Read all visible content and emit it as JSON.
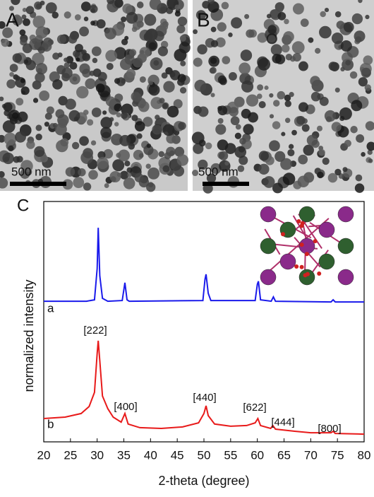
{
  "panels": {
    "A": {
      "label": "A",
      "scale_bar": "500 nm"
    },
    "B": {
      "label": "B",
      "scale_bar": "500 nm"
    }
  },
  "chart_data": {
    "type": "line",
    "panel_label": "C",
    "xlabel": "2-theta (degree)",
    "ylabel": "normalized intensity",
    "xlim": [
      20,
      80
    ],
    "xticks": [
      20,
      25,
      30,
      35,
      40,
      45,
      50,
      55,
      60,
      65,
      70,
      75,
      80
    ],
    "ylim": [
      0,
      100
    ],
    "series": [
      {
        "name": "a",
        "color": "#1a1aeb",
        "x": [
          20,
          28,
          29.5,
          30,
          30.2,
          30.5,
          31,
          32,
          34.7,
          35.2,
          35.6,
          36,
          49.8,
          50.2,
          50.4,
          50.8,
          51.3,
          59.6,
          60.0,
          60.2,
          60.6,
          62.6,
          63.0,
          63.4,
          73.8,
          74.2,
          74.6,
          80
        ],
        "values": [
          58.5,
          58.5,
          59.1,
          72.1,
          89.1,
          69.1,
          59.7,
          58.5,
          58.8,
          66.2,
          59.1,
          58.5,
          58.8,
          67.6,
          69.7,
          61.8,
          58.8,
          58.8,
          65.6,
          66.8,
          59.1,
          58.5,
          60.3,
          58.5,
          58.2,
          59.1,
          58.2,
          58.2
        ]
      },
      {
        "name": "b",
        "color": "#e81a1a",
        "x": [
          20,
          24,
          27,
          28.5,
          29.5,
          30,
          30.2,
          30.5,
          31,
          32,
          33,
          34.5,
          35.2,
          35.8,
          38,
          42,
          46,
          49,
          50.0,
          50.4,
          50.8,
          52,
          55,
          58,
          59.6,
          60.1,
          60.6,
          62.5,
          62.9,
          63.4,
          67,
          70,
          73.8,
          74.2,
          74.6,
          80
        ],
        "values": [
          9.7,
          10.3,
          11.8,
          14.7,
          20.6,
          36.8,
          42.1,
          33.8,
          19.1,
          13.8,
          10.3,
          8.2,
          11.8,
          7.4,
          5.9,
          5.6,
          6.2,
          7.9,
          11.8,
          15,
          10.9,
          7.4,
          6.5,
          6.8,
          7.9,
          9.7,
          6.8,
          5.6,
          6.8,
          5.3,
          4.4,
          3.8,
          3.8,
          4.4,
          3.5,
          3.2
        ]
      }
    ],
    "annotations": [
      "[222]",
      "[400]",
      "[440]",
      "[622]",
      "[444]",
      "[800]"
    ]
  }
}
